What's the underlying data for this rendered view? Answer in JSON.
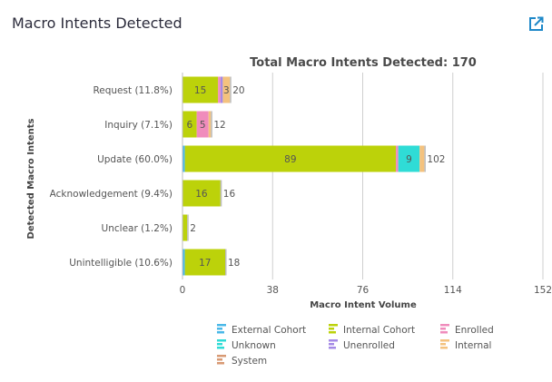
{
  "card": {
    "title": "Macro Intents Detected",
    "export_icon": "share-export-icon"
  },
  "chart_data": {
    "type": "bar",
    "orientation": "horizontal",
    "stacked": true,
    "title": "Total Macro Intents Detected: 170",
    "xlabel": "Macro Intent Volume",
    "ylabel": "Detected Macro Intents",
    "xlim": [
      0,
      152
    ],
    "xticks": [
      0,
      38,
      76,
      114,
      152
    ],
    "grid": true,
    "legend_position": "bottom",
    "categories": [
      "Request (11.8%)",
      "Inquiry (7.1%)",
      "Update (60.0%)",
      "Acknowledgement (9.4%)",
      "Unclear (1.2%)",
      "Unintelligible (10.6%)"
    ],
    "totals": [
      20,
      12,
      102,
      16,
      2,
      18
    ],
    "series": [
      {
        "name": "External Cohort",
        "color": "#4ab8e8",
        "values": [
          0,
          0,
          1,
          0,
          0,
          1
        ]
      },
      {
        "name": "Internal Cohort",
        "color": "#bcd20a",
        "values": [
          15,
          6,
          89,
          16,
          2,
          17
        ]
      },
      {
        "name": "Enrolled",
        "color": "#f08cbc",
        "values": [
          1,
          5,
          1,
          0,
          0,
          0
        ]
      },
      {
        "name": "Unknown",
        "color": "#2fdcd6",
        "values": [
          0,
          0,
          9,
          0,
          0,
          0
        ]
      },
      {
        "name": "Unenrolled",
        "color": "#a58ae6",
        "values": [
          1,
          0,
          0,
          0,
          0,
          0
        ]
      },
      {
        "name": "Internal",
        "color": "#f4c27e",
        "values": [
          3,
          1,
          2,
          0,
          0,
          0
        ]
      },
      {
        "name": "System",
        "color": "#d89a74",
        "values": [
          0,
          0,
          0,
          0,
          0,
          0
        ]
      }
    ],
    "data_labels": [
      {
        "category": "Request (11.8%)",
        "series": "Internal Cohort",
        "text": "15"
      },
      {
        "category": "Request (11.8%)",
        "series": "Internal",
        "text": "3"
      },
      {
        "category": "Inquiry (7.1%)",
        "series": "Internal Cohort",
        "text": "6"
      },
      {
        "category": "Inquiry (7.1%)",
        "series": "Enrolled",
        "text": "5"
      },
      {
        "category": "Update (60.0%)",
        "series": "Internal Cohort",
        "text": "89"
      },
      {
        "category": "Update (60.0%)",
        "series": "Unknown",
        "text": "9"
      },
      {
        "category": "Acknowledgement (9.4%)",
        "series": "Internal Cohort",
        "text": "16"
      },
      {
        "category": "Unintelligible (10.6%)",
        "series": "Internal Cohort",
        "text": "17"
      }
    ]
  }
}
